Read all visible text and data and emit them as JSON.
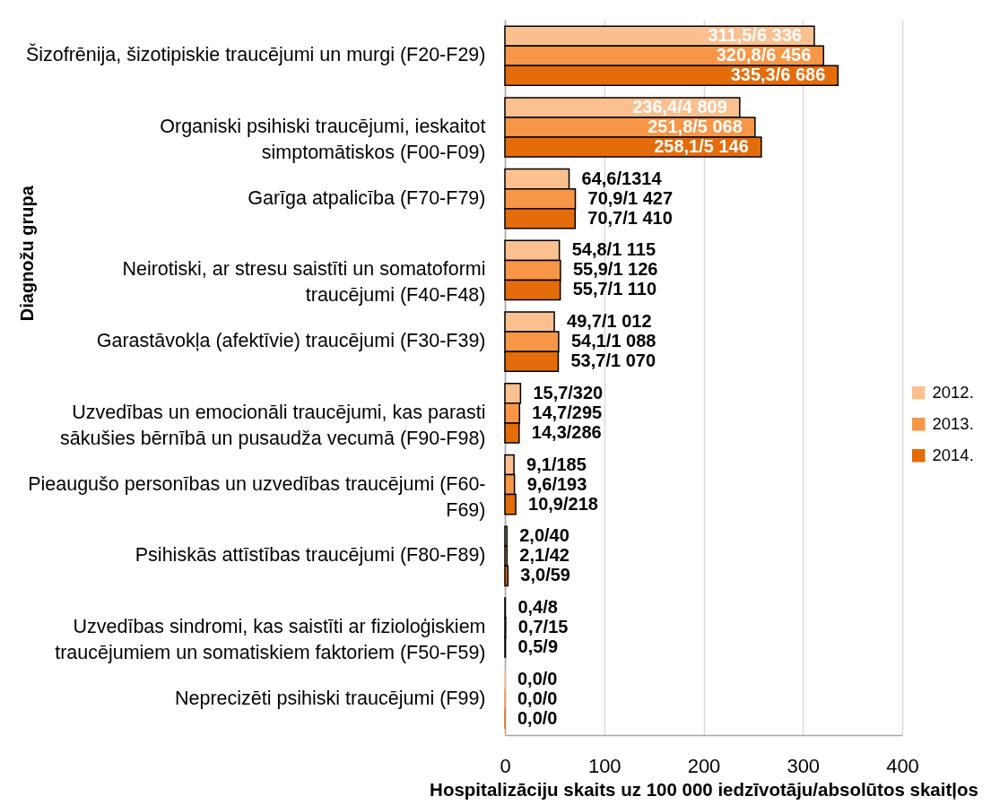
{
  "chart_data": {
    "type": "bar",
    "orientation": "horizontal",
    "xlabel": "Hospitalizāciju skaits uz 100 000 iedzīvotāju/absolūtos skaitļos",
    "ylabel": "Diagnožu grupa",
    "categories": [
      "Šizofrēnija, šizotipiskie traucējumi un murgi (F20-F29)",
      "Organiski psihiski traucējumi, ieskaitot\nsimptomātiskos (F00-F09)",
      "Garīga atpalicība (F70-F79)",
      "Neirotiski, ar stresu saistīti un somatoformi\ntraucējumi (F40-F48)",
      "Garastāvokļa (afektīvie) traucējumi (F30-F39)",
      "Uzvedības un emocionāli traucējumi, kas parasti\nsākušies bērnībā un pusaudža vecumā (F90-F98)",
      "Pieaugušo personības un uzvedības traucējumi (F60-\nF69)",
      "Psihiskās attīstības traucējumi (F80-F89)",
      "Uzvedības sindromi, kas saistīti ar fizioloģiskiem\ntraucējumiem un somatiskiem faktoriem (F50-F59)",
      "Neprecizēti psihiski traucējumi (F99)"
    ],
    "series": [
      {
        "name": "2012.",
        "color": "#fac090",
        "values": [
          311.5,
          236.4,
          64.6,
          54.8,
          49.7,
          15.7,
          9.1,
          2.0,
          0.4,
          0.0
        ],
        "value_labels": [
          "311,5/6 336",
          "236,4/4 809",
          "64,6/1314",
          "54,8/1 115",
          "49,7/1 012",
          "15,7/320",
          "9,1/185",
          "2,0/40",
          "0,4/8",
          "0,0/0"
        ]
      },
      {
        "name": "2013.",
        "color": "#f79646",
        "values": [
          320.8,
          251.8,
          70.9,
          55.9,
          54.1,
          14.7,
          9.6,
          2.1,
          0.7,
          0.0
        ],
        "value_labels": [
          "320,8/6 456",
          "251,8/5 068",
          "70,9/1 427",
          "55,9/1 126",
          "54,1/1 088",
          "14,7/295",
          "9,6/193",
          "2,1/42",
          "0,7/15",
          "0,0/0"
        ]
      },
      {
        "name": "2014.",
        "color": "#e46c0a",
        "values": [
          335.3,
          258.1,
          70.7,
          55.7,
          53.7,
          14.3,
          10.9,
          3.0,
          0.5,
          0.0
        ],
        "value_labels": [
          "335,3/6 686",
          "258,1/5 146",
          "70,7/1 410",
          "55,7/1 110",
          "53,7/1 070",
          "14,3/286",
          "10,9/218",
          "3,0/59",
          "0,5/9",
          "0,0/0"
        ]
      }
    ],
    "xlim": [
      0,
      400
    ],
    "xticks": [
      0,
      100,
      200,
      300,
      400
    ],
    "grid": "x",
    "legend": "right"
  }
}
